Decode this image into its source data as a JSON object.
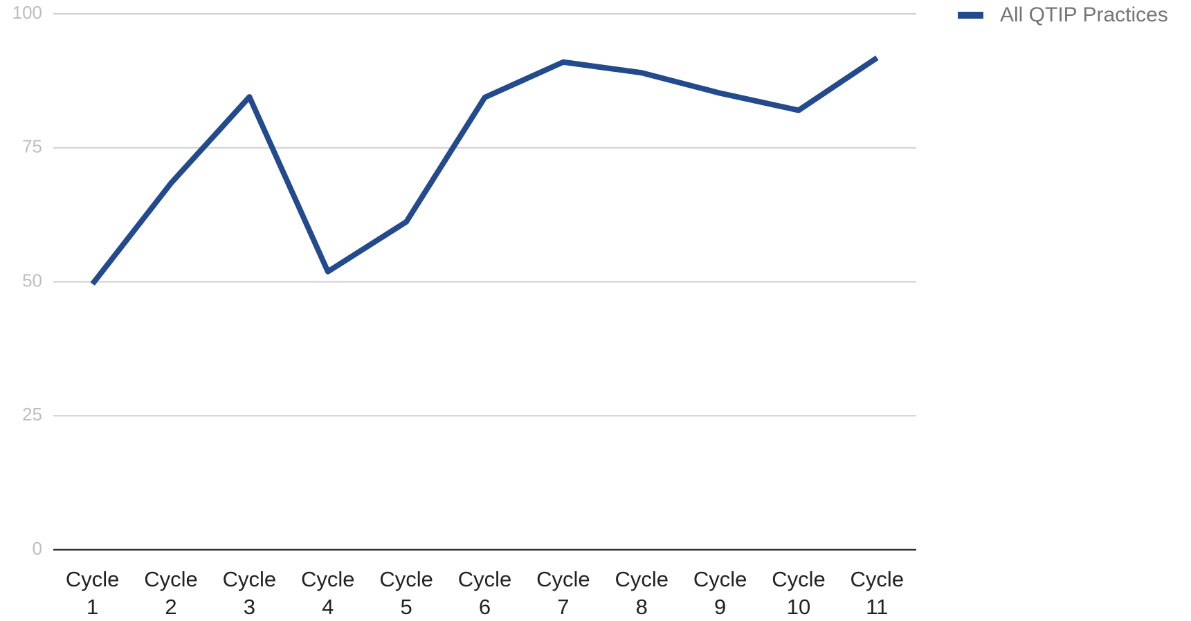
{
  "chart_data": {
    "type": "line",
    "categories": [
      "Cycle 1",
      "Cycle 2",
      "Cycle 3",
      "Cycle 4",
      "Cycle 5",
      "Cycle 6",
      "Cycle 7",
      "Cycle 8",
      "Cycle 9",
      "Cycle 10",
      "Cycle 11"
    ],
    "series": [
      {
        "name": "All QTIP Practices",
        "color": "#234a8c",
        "values": [
          49.6,
          68.4,
          84.5,
          51.9,
          61.2,
          84.4,
          91,
          89,
          85.2,
          82,
          91.8
        ]
      }
    ],
    "ylim": [
      0,
      100
    ],
    "yticks": [
      0,
      25,
      50,
      75,
      100
    ],
    "grid": true,
    "legend": "top-right"
  }
}
